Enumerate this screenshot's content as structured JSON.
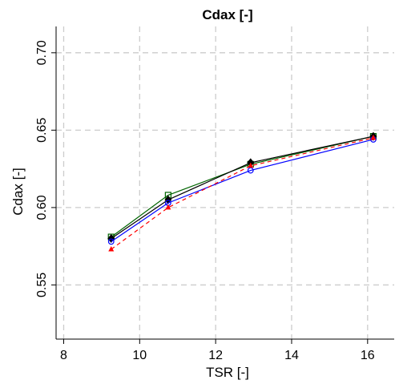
{
  "chart_data": {
    "type": "line",
    "title": "Cdax [-]",
    "xlabel": "TSR [-]",
    "ylabel": "Cdax [-]",
    "xlim": [
      7.8,
      16.7
    ],
    "ylim": [
      0.515,
      0.717
    ],
    "x_ticks": [
      8,
      10,
      12,
      14,
      16
    ],
    "x_tick_labels": [
      "8",
      "10",
      "12",
      "14",
      "16"
    ],
    "y_ticks": [
      0.55,
      0.6,
      0.65,
      0.7
    ],
    "y_tick_labels": [
      "0.55",
      "0.60",
      "0.65",
      "0.70"
    ],
    "grid": true,
    "x": [
      9.25,
      10.75,
      12.92,
      16.15
    ],
    "series": [
      {
        "values": [
          0.581,
          0.608,
          0.628,
          0.646
        ],
        "color": "#006400",
        "marker": "square-open",
        "dash": false
      },
      {
        "values": [
          0.58,
          0.605,
          0.629,
          0.646
        ],
        "color": "#000000",
        "marker": "diamond-filled",
        "dash": false
      },
      {
        "values": [
          0.578,
          0.603,
          0.624,
          0.644
        ],
        "color": "#0000ff",
        "marker": "circle-open",
        "dash": false
      },
      {
        "values": [
          0.573,
          0.6,
          0.627,
          0.645
        ],
        "color": "#ff0000",
        "marker": "triangle-filled",
        "dash": true
      }
    ]
  }
}
